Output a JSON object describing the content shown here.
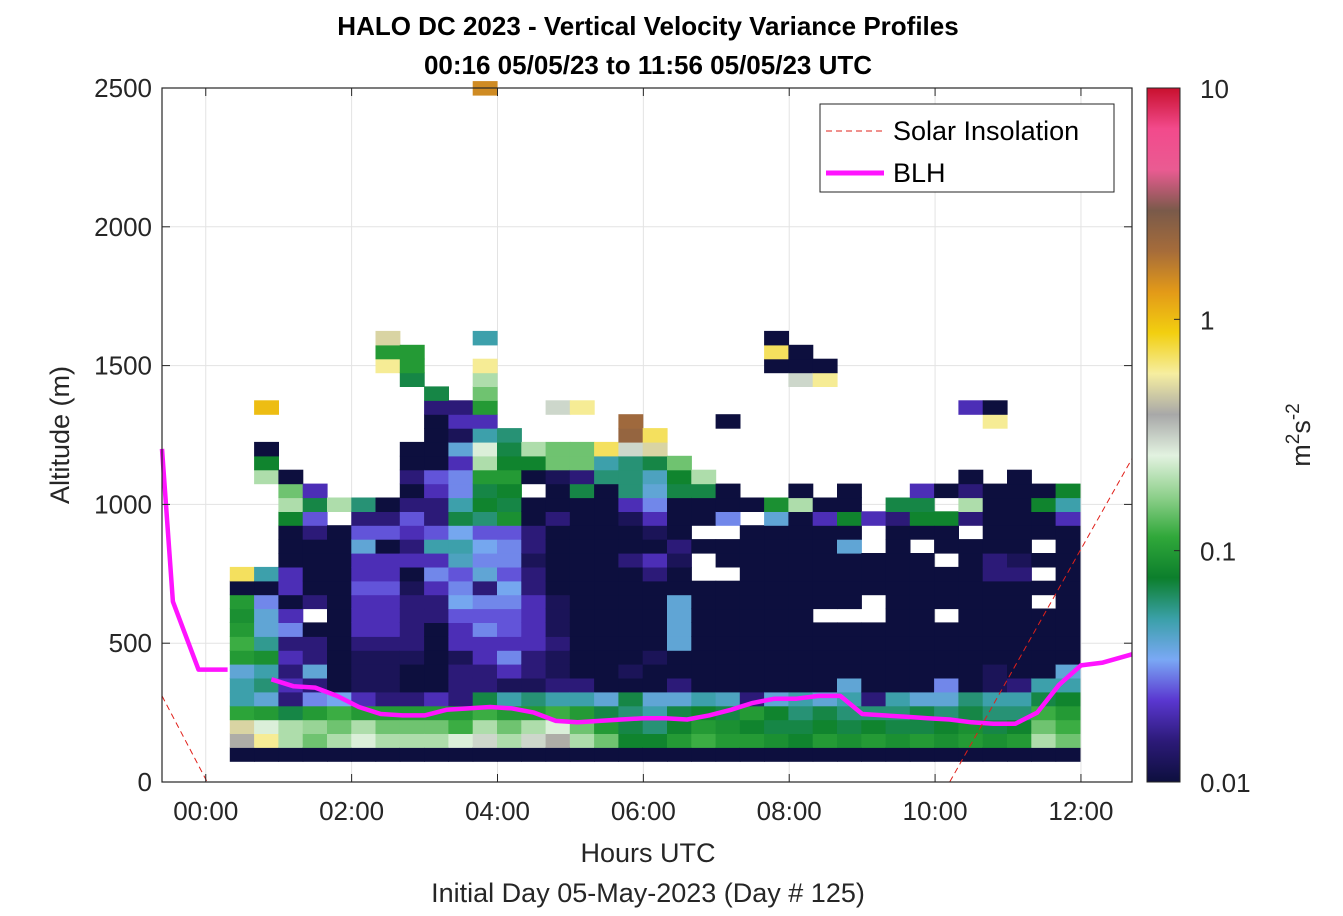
{
  "chart_data": {
    "type": "heatmap",
    "title_lines": [
      "HALO DC 2023 - Vertical Velocity Variance Profiles",
      "00:16 05/05/23 to 11:56 05/05/23  UTC"
    ],
    "xlabel": "Hours UTC",
    "xlabel_sub": "Initial Day 05-May-2023 (Day # 125)",
    "ylabel": "Altitude (m)",
    "colorbar_label": "m2s-2",
    "xlim": [
      -0.6,
      12.7
    ],
    "ylim": [
      0,
      2500
    ],
    "xticks": [
      0,
      2,
      4,
      6,
      8,
      10,
      12
    ],
    "xtick_labels": [
      "00:00",
      "02:00",
      "04:00",
      "06:00",
      "08:00",
      "10:00",
      "12:00"
    ],
    "yticks": [
      0,
      500,
      1000,
      1500,
      2000,
      2500
    ],
    "ytick_labels": [
      "0",
      "500",
      "1000",
      "1500",
      "2000",
      "2500"
    ],
    "colorbar": {
      "scale": "log",
      "range": [
        0.01,
        10
      ],
      "ticks": [
        0.01,
        0.1,
        1,
        10
      ],
      "tick_labels": [
        "0.01",
        "0.1",
        "1",
        "10"
      ],
      "colors": [
        "#0d0f3e",
        "#2c1a78",
        "#5a37d0",
        "#7aa8f5",
        "#3aa0a8",
        "#0c7f2c",
        "#30a83a",
        "#8fd08c",
        "#e2f2e0",
        "#a8a8a8",
        "#f6eea0",
        "#f2cf10",
        "#e39a18",
        "#a66c3a",
        "#7a5a4a",
        "#ea5b92",
        "#f24a8c",
        "#c8102e"
      ]
    },
    "grid": true,
    "legend": {
      "placement": "top-right",
      "entries": [
        {
          "label": "Solar Insolation",
          "style": "dashed",
          "color": "#e0201a"
        },
        {
          "label": "BLH",
          "style": "solid",
          "color": "#ff14ff"
        }
      ]
    },
    "heatmap": {
      "x_start": 0.33,
      "dx": 0.333,
      "altitudes": [
        100,
        150,
        200,
        250,
        300,
        350,
        400,
        450,
        500,
        550,
        600,
        650,
        700,
        750,
        800,
        850,
        900,
        950,
        1000,
        1050,
        1100,
        1150,
        1200,
        1250,
        1300,
        1350,
        1400,
        1450,
        1500,
        1550,
        1600,
        2300,
        2350,
        2500
      ],
      "profiles": [
        [
          0.01,
          0.4,
          0.5,
          0.11,
          0.05,
          0.05,
          0.04,
          0.1,
          0.12,
          0.1,
          0.09,
          0.1,
          0.01,
          0.7
        ],
        [
          0.01,
          0.6,
          0.25,
          0.1,
          0.04,
          0.06,
          0.05,
          0.09,
          0.055,
          0.04,
          0.04,
          0.03,
          0.01,
          0.05,
          null,
          null,
          null,
          null,
          null,
          null,
          0.2,
          0.08,
          0.01,
          null,
          null,
          1.0
        ],
        [
          0.01,
          0.2,
          0.2,
          0.07,
          0.015,
          0.02,
          0.015,
          0.02,
          0.015,
          0.03,
          0.02,
          0.01,
          0.02,
          0.02,
          0.01,
          0.01,
          0.01,
          0.08,
          0.2,
          0.15,
          0.01
        ],
        [
          0.01,
          0.15,
          0.18,
          0.1,
          0.03,
          0.015,
          0.04,
          0.015,
          0.015,
          0.01,
          null,
          0.015,
          0.01,
          0.01,
          0.01,
          0.01,
          0.015,
          0.025,
          0.07,
          0.02
        ],
        [
          0.01,
          0.2,
          0.15,
          0.12,
          0.035,
          0.01,
          0.01,
          0.01,
          0.01,
          0.01,
          0.01,
          0.01,
          0.01,
          0.01,
          0.01,
          0.01,
          0.01,
          null,
          0.2
        ],
        [
          0.01,
          0.25,
          0.2,
          0.1,
          0.02,
          0.012,
          0.012,
          0.012,
          0.015,
          0.02,
          0.02,
          0.02,
          0.025,
          0.02,
          0.02,
          0.04,
          0.025,
          0.015,
          0.06
        ],
        [
          0.01,
          0.2,
          0.15,
          0.1,
          0.015,
          0.012,
          0.012,
          0.012,
          0.015,
          0.02,
          0.02,
          0.02,
          0.025,
          0.02,
          0.02,
          0.01,
          0.025,
          0.015,
          0.01,
          null,
          null,
          null,
          null,
          null,
          null,
          null,
          null,
          null,
          0.6,
          0.1,
          0.5
        ],
        [
          0.01,
          0.2,
          0.15,
          0.1,
          0.015,
          0.01,
          0.01,
          0.012,
          0.015,
          0.015,
          0.015,
          0.015,
          0.012,
          0.01,
          0.02,
          0.015,
          0.02,
          0.025,
          0.015,
          0.01,
          0.015,
          0.01,
          0.01,
          null,
          null,
          null,
          null,
          0.07,
          0.1,
          0.1
        ],
        [
          0.01,
          0.2,
          0.15,
          0.1,
          0.02,
          0.01,
          0.01,
          0.01,
          0.01,
          0.01,
          0.015,
          0.015,
          0.02,
          0.03,
          0.02,
          0.05,
          0.025,
          0.015,
          0.015,
          0.02,
          0.025,
          0.01,
          0.01,
          0.01,
          0.01,
          0.015,
          0.07
        ],
        [
          0.01,
          0.25,
          0.12,
          0.1,
          0.015,
          0.015,
          0.015,
          0.012,
          0.02,
          0.02,
          0.025,
          0.035,
          0.03,
          0.025,
          0.045,
          0.05,
          0.035,
          0.07,
          0.05,
          0.03,
          0.03,
          0.02,
          0.04,
          0.012,
          0.02,
          0.015
        ],
        [
          0.01,
          0.3,
          0.2,
          0.12,
          0.07,
          0.015,
          0.015,
          0.02,
          0.02,
          0.03,
          0.025,
          0.03,
          0.015,
          0.04,
          0.03,
          0.035,
          0.025,
          0.06,
          0.08,
          0.07,
          0.1,
          0.2,
          0.25,
          0.05,
          0.02,
          0.1,
          0.15,
          0.2,
          0.6,
          null,
          0.05,
          null,
          null,
          1.5
        ],
        [
          0.01,
          0.2,
          0.15,
          0.1,
          0.05,
          0.012,
          0.02,
          0.03,
          0.02,
          0.025,
          0.025,
          0.03,
          0.035,
          0.025,
          0.03,
          0.03,
          0.025,
          0.09,
          0.07,
          0.08,
          0.1,
          0.08,
          0.07,
          0.06
        ],
        [
          0.01,
          0.3,
          0.2,
          0.1,
          0.06,
          0.012,
          0.015,
          0.015,
          0.02,
          0.02,
          0.02,
          0.02,
          0.015,
          0.015,
          0.012,
          0.015,
          0.015,
          0.01,
          0.01,
          null,
          0.01,
          0.08,
          0.2
        ],
        [
          0.01,
          0.4,
          0.25,
          0.12,
          0.05,
          0.015,
          0.012,
          0.012,
          0.015,
          0.012,
          0.012,
          0.012,
          0.01,
          0.01,
          0.01,
          0.01,
          0.01,
          0.015,
          0.01,
          0.01,
          0.012,
          0.15,
          0.15,
          null,
          null,
          0.3
        ],
        [
          0.01,
          0.2,
          0.15,
          0.1,
          0.05,
          0.015,
          0.01,
          0.01,
          0.01,
          0.01,
          0.01,
          0.01,
          0.01,
          0.01,
          0.01,
          0.01,
          0.01,
          0.01,
          0.01,
          0.07,
          0.015,
          0.15,
          0.15,
          null,
          null,
          0.6
        ],
        [
          0.01,
          0.15,
          0.1,
          0.07,
          0.04,
          0.01,
          0.01,
          0.01,
          0.01,
          0.01,
          0.01,
          0.01,
          0.01,
          0.01,
          0.01,
          0.01,
          0.01,
          0.01,
          0.01,
          0.01,
          0.06,
          0.05,
          0.7
        ],
        [
          0.01,
          0.08,
          0.07,
          0.06,
          0.07,
          0.01,
          0.012,
          0.01,
          0.01,
          0.01,
          0.01,
          0.01,
          0.01,
          0.01,
          0.015,
          0.01,
          0.01,
          0.012,
          0.02,
          0.06,
          0.06,
          0.06,
          0.3,
          2.3,
          2.1
        ],
        [
          0.01,
          0.08,
          0.06,
          0.05,
          0.04,
          0.01,
          0.01,
          0.012,
          0.01,
          0.01,
          0.01,
          0.01,
          0.01,
          0.015,
          0.02,
          0.01,
          0.012,
          0.02,
          0.03,
          0.04,
          0.045,
          0.07,
          0.5,
          0.7
        ],
        [
          0.01,
          0.1,
          0.08,
          0.07,
          0.04,
          0.015,
          0.01,
          0.01,
          0.04,
          0.04,
          0.04,
          0.04,
          0.01,
          0.01,
          0.012,
          0.015,
          0.01,
          0.01,
          0.01,
          0.07,
          0.08,
          0.15
        ],
        [
          0.01,
          0.12,
          0.1,
          0.08,
          0.05,
          0.01,
          0.01,
          0.01,
          0.01,
          0.01,
          0.01,
          0.01,
          0.01,
          null,
          null,
          0.01,
          null,
          0.01,
          0.01,
          0.07,
          0.2
        ],
        [
          0.01,
          0.1,
          0.09,
          0.07,
          0.045,
          0.01,
          0.01,
          0.01,
          0.01,
          0.01,
          0.01,
          0.01,
          0.01,
          null,
          0.01,
          0.01,
          null,
          0.03,
          0.01,
          0.01,
          null,
          null,
          null,
          null,
          0.01
        ],
        [
          0.01,
          0.1,
          0.08,
          0.1,
          0.015,
          0.01,
          0.01,
          0.01,
          0.01,
          0.01,
          0.01,
          0.01,
          0.01,
          0.01,
          0.01,
          0.01,
          0.01,
          null,
          0.01
        ],
        [
          0.01,
          0.09,
          0.07,
          0.08,
          0.04,
          0.01,
          0.01,
          0.01,
          0.01,
          0.01,
          0.01,
          0.01,
          0.01,
          0.01,
          0.01,
          0.01,
          0.01,
          0.04,
          0.09,
          null,
          null,
          null,
          null,
          null,
          null,
          null,
          null,
          null,
          0.01,
          0.7,
          0.01
        ],
        [
          0.01,
          0.08,
          0.07,
          0.06,
          0.05,
          0.01,
          0.01,
          0.01,
          0.01,
          0.01,
          0.01,
          0.01,
          0.01,
          0.01,
          0.01,
          0.01,
          0.01,
          0.01,
          0.2,
          0.01,
          null,
          null,
          null,
          null,
          null,
          null,
          null,
          0.3,
          0.01,
          0.01
        ],
        [
          0.01,
          0.1,
          0.08,
          0.07,
          0.04,
          0.01,
          0.01,
          0.01,
          0.01,
          0.01,
          null,
          0.01,
          0.01,
          0.01,
          0.01,
          0.01,
          0.01,
          0.02,
          0.01,
          null,
          null,
          null,
          null,
          null,
          null,
          null,
          null,
          0.6,
          0.01
        ],
        [
          0.01,
          0.09,
          0.07,
          0.06,
          0.05,
          0.04,
          0.01,
          0.01,
          0.01,
          0.01,
          null,
          0.01,
          0.01,
          0.01,
          0.01,
          0.04,
          0.01,
          0.08,
          0.01,
          0.01
        ],
        [
          0.01,
          0.1,
          0.08,
          0.06,
          0.015,
          0.01,
          0.01,
          0.01,
          0.01,
          0.01,
          null,
          null,
          0.01,
          0.01,
          0.01,
          null,
          null,
          0.02
        ],
        [
          0.01,
          0.09,
          0.07,
          0.06,
          0.05,
          0.01,
          0.01,
          0.01,
          0.01,
          0.01,
          0.01,
          0.01,
          0.01,
          0.01,
          0.01,
          0.01,
          0.01,
          0.015,
          0.07
        ],
        [
          0.01,
          0.1,
          0.07,
          0.07,
          0.04,
          0.01,
          0.01,
          0.01,
          0.01,
          0.01,
          0.01,
          0.01,
          0.01,
          0.01,
          0.01,
          null,
          0.01,
          0.08,
          0.07,
          0.02
        ],
        [
          0.01,
          0.09,
          0.08,
          0.06,
          0.04,
          0.03,
          0.01,
          0.01,
          0.01,
          0.01,
          null,
          0.01,
          0.01,
          0.01,
          null,
          0.01,
          0.01,
          0.08,
          null,
          0.01
        ],
        [
          0.01,
          0.1,
          0.09,
          0.07,
          0.06,
          0.01,
          0.01,
          0.01,
          0.01,
          0.01,
          0.01,
          0.01,
          0.01,
          0.01,
          0.01,
          0.01,
          null,
          0.015,
          0.2,
          0.015,
          0.01,
          null,
          null,
          null,
          null,
          0.02
        ],
        [
          0.01,
          0.09,
          0.07,
          0.06,
          0.05,
          0.012,
          0.012,
          0.01,
          0.01,
          0.01,
          0.01,
          0.01,
          0.01,
          0.015,
          0.015,
          0.01,
          0.01,
          0.01,
          0.01,
          0.01,
          null,
          null,
          null,
          null,
          0.6,
          0.01
        ],
        [
          0.01,
          0.1,
          0.08,
          0.06,
          0.05,
          0.015,
          0.01,
          0.01,
          0.01,
          0.01,
          0.01,
          0.01,
          0.01,
          0.015,
          0.012,
          0.01,
          0.01,
          0.01,
          0.01,
          0.01,
          0.01
        ],
        [
          0.01,
          0.2,
          0.15,
          0.12,
          0.07,
          0.05,
          0.01,
          0.01,
          0.01,
          0.01,
          0.01,
          null,
          0.01,
          null,
          0.01,
          null,
          0.01,
          0.01,
          0.08,
          0.01
        ],
        [
          0.01,
          0.15,
          0.12,
          0.1,
          0.08,
          0.05,
          0.04,
          0.01,
          0.01,
          0.01,
          0.01,
          0.01,
          0.01,
          0.01,
          0.01,
          0.01,
          0.01,
          0.02,
          0.05,
          0.08
        ]
      ]
    },
    "series": [
      {
        "name": "BLH",
        "x": [
          -0.6,
          -0.45,
          -0.1,
          0.3,
          0.6,
          0.9,
          1.2,
          1.5,
          1.8,
          2.1,
          2.4,
          2.7,
          3.0,
          3.3,
          3.6,
          3.9,
          4.2,
          4.5,
          4.8,
          5.1,
          5.4,
          5.7,
          6.0,
          6.3,
          6.6,
          6.9,
          7.2,
          7.5,
          7.8,
          8.1,
          8.4,
          8.7,
          9.0,
          9.3,
          9.6,
          9.9,
          10.2,
          10.5,
          10.8,
          11.1,
          11.4,
          11.7,
          12.0,
          12.3,
          12.7
        ],
        "y": [
          1200,
          650,
          405,
          405,
          null,
          370,
          345,
          340,
          310,
          270,
          245,
          240,
          240,
          260,
          265,
          270,
          265,
          250,
          220,
          215,
          220,
          225,
          230,
          230,
          225,
          240,
          260,
          285,
          300,
          300,
          310,
          310,
          245,
          240,
          235,
          230,
          225,
          215,
          210,
          210,
          250,
          350,
          420,
          430,
          460
        ]
      },
      {
        "name": "Solar Insolation",
        "x": [
          -0.6,
          0.02,
          10.2,
          12.7
        ],
        "y": [
          310,
          0,
          0,
          1165
        ]
      }
    ]
  }
}
